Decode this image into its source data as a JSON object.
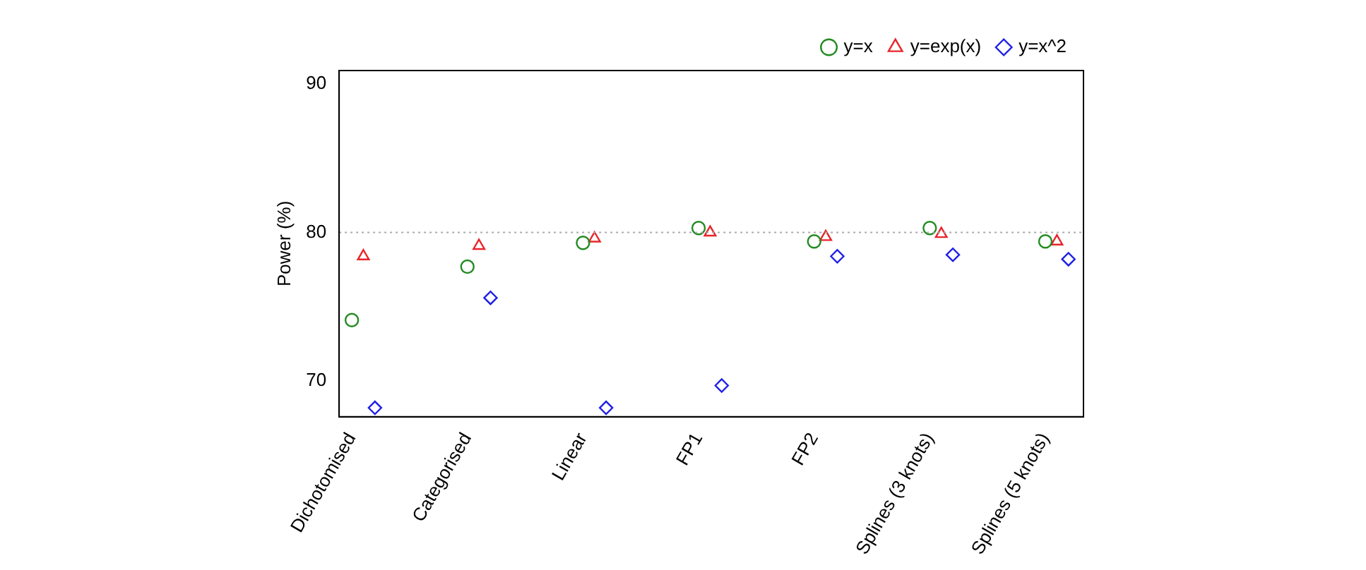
{
  "chart_data": {
    "type": "scatter",
    "ylabel": "Power (%)",
    "categories": [
      "Dichotomised",
      "Categorised",
      "Linear",
      "FP1",
      "FP2",
      "Splines (3 knots)",
      "Splines (5 knots)"
    ],
    "series": [
      {
        "name": "y=x",
        "color": "#228b22",
        "marker": "circle",
        "values": [
          74.1,
          77.7,
          79.3,
          80.3,
          79.4,
          80.3,
          79.4
        ]
      },
      {
        "name": "y=exp(x)",
        "color": "#e8242a",
        "marker": "triangle",
        "values": [
          78.4,
          79.1,
          79.6,
          80.0,
          79.7,
          79.9,
          79.4
        ]
      },
      {
        "name": "y=x^2",
        "color": "#2020e8",
        "marker": "diamond",
        "values": [
          68.2,
          75.6,
          68.2,
          69.7,
          78.4,
          78.5,
          78.2
        ]
      }
    ],
    "ylim": [
      67.6,
      90.9
    ],
    "yticks": [
      70,
      80,
      90
    ],
    "grid": false,
    "legend": "top right",
    "ref_lines": [
      {
        "axis": "y",
        "value": 80,
        "color": "#aaaaaa",
        "line_style": "dotted"
      }
    ]
  }
}
